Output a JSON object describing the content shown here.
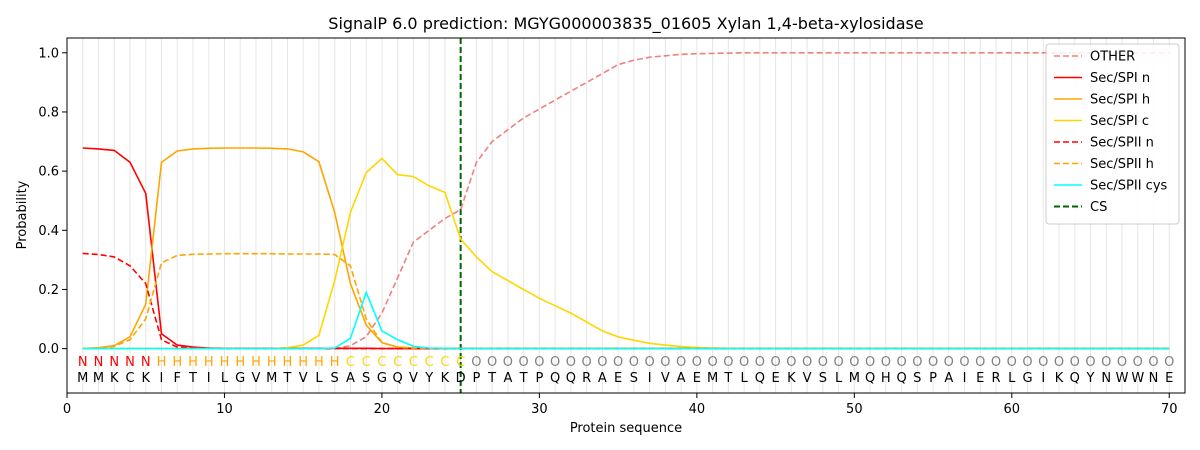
{
  "chart_data": {
    "type": "line",
    "title": "SignalP 6.0 prediction: MGYG000003835_01605 Xylan 1,4-beta-xylosidase",
    "xlabel": "Protein sequence",
    "ylabel": "Probability",
    "xlim": [
      0,
      71
    ],
    "ylim": [
      -0.15,
      1.05
    ],
    "xticks": [
      0,
      10,
      20,
      30,
      40,
      50,
      60,
      70
    ],
    "yticks": [
      0.0,
      0.2,
      0.4,
      0.6,
      0.8,
      1.0
    ],
    "xtick_labels": [
      "0",
      "10",
      "20",
      "30",
      "40",
      "50",
      "60",
      "70"
    ],
    "ytick_labels": [
      "0.0",
      "0.2",
      "0.4",
      "0.6",
      "0.8",
      "1.0"
    ],
    "legend_position": "top-right",
    "cleavage_site": 25,
    "sequence": [
      "M",
      "M",
      "K",
      "C",
      "K",
      "I",
      "F",
      "T",
      "I",
      "L",
      "G",
      "V",
      "M",
      "T",
      "V",
      "L",
      "S",
      "A",
      "S",
      "G",
      "Q",
      "V",
      "Y",
      "K",
      "D",
      "P",
      "T",
      "A",
      "T",
      "P",
      "Q",
      "Q",
      "R",
      "A",
      "E",
      "S",
      "I",
      "V",
      "A",
      "E",
      "M",
      "T",
      "L",
      "Q",
      "E",
      "K",
      "V",
      "S",
      "L",
      "M",
      "Q",
      "H",
      "Q",
      "S",
      "P",
      "A",
      "I",
      "E",
      "R",
      "L",
      "G",
      "I",
      "K",
      "Q",
      "Y",
      "N",
      "W",
      "W",
      "N",
      "E"
    ],
    "region_labels": [
      "N",
      "N",
      "N",
      "N",
      "N",
      "H",
      "H",
      "H",
      "H",
      "H",
      "H",
      "H",
      "H",
      "H",
      "H",
      "H",
      "H",
      "C",
      "C",
      "C",
      "C",
      "C",
      "C",
      "C",
      "C",
      "O",
      "O",
      "O",
      "O",
      "O",
      "O",
      "O",
      "O",
      "O",
      "O",
      "O",
      "O",
      "O",
      "O",
      "O",
      "O",
      "O",
      "O",
      "O",
      "O",
      "O",
      "O",
      "O",
      "O",
      "O",
      "O",
      "O",
      "O",
      "O",
      "O",
      "O",
      "O",
      "O",
      "O",
      "O",
      "O",
      "O",
      "O",
      "O",
      "O",
      "O",
      "O",
      "O",
      "O",
      "O"
    ],
    "region_colors": {
      "N": "#ff0000",
      "H": "#ffa500",
      "C": "#ffd700",
      "O": "#808080"
    },
    "cs_label": "CS",
    "cs_color": "#006400",
    "series": [
      {
        "name": "OTHER",
        "color": "#f08080",
        "dash": "dashed",
        "values": [
          0.0,
          0.0,
          0.0,
          0.0,
          0.0,
          0.0,
          0.0,
          0.0,
          0.0,
          0.0,
          0.0,
          0.0,
          0.0,
          0.0,
          0.0,
          0.0,
          0.0,
          0.01,
          0.04,
          0.12,
          0.24,
          0.36,
          0.4,
          0.44,
          0.47,
          0.63,
          0.7,
          0.74,
          0.78,
          0.81,
          0.84,
          0.87,
          0.9,
          0.93,
          0.96,
          0.975,
          0.985,
          0.99,
          0.995,
          0.997,
          0.998,
          0.999,
          1.0,
          1.0,
          1.0,
          1.0,
          1.0,
          1.0,
          1.0,
          1.0,
          1.0,
          1.0,
          1.0,
          1.0,
          1.0,
          1.0,
          1.0,
          1.0,
          1.0,
          1.0,
          1.0,
          1.0,
          1.0,
          1.0,
          1.0,
          1.0,
          1.0,
          1.0,
          1.0,
          1.0
        ]
      },
      {
        "name": "Sec/SPI n",
        "color": "#ff0000",
        "dash": "solid",
        "values": [
          0.678,
          0.675,
          0.67,
          0.63,
          0.525,
          0.05,
          0.012,
          0.005,
          0.002,
          0.001,
          0.001,
          0.001,
          0.001,
          0.001,
          0.001,
          0.001,
          0.001,
          0.001,
          0.001,
          0.0,
          0.0,
          0.0,
          0.0,
          0.0,
          0.0,
          0.0,
          0.0,
          0.0,
          0.0,
          0.0,
          0.0,
          0.0,
          0.0,
          0.0,
          0.0,
          0.0,
          0.0,
          0.0,
          0.0,
          0.0,
          0.0,
          0.0,
          0.0,
          0.0,
          0.0,
          0.0,
          0.0,
          0.0,
          0.0,
          0.0,
          0.0,
          0.0,
          0.0,
          0.0,
          0.0,
          0.0,
          0.0,
          0.0,
          0.0,
          0.0,
          0.0,
          0.0,
          0.0,
          0.0,
          0.0,
          0.0,
          0.0,
          0.0,
          0.0,
          0.0
        ]
      },
      {
        "name": "Sec/SPI h",
        "color": "#ffa500",
        "dash": "solid",
        "values": [
          0.0,
          0.003,
          0.01,
          0.04,
          0.15,
          0.63,
          0.668,
          0.675,
          0.677,
          0.678,
          0.678,
          0.678,
          0.677,
          0.675,
          0.665,
          0.632,
          0.46,
          0.22,
          0.08,
          0.02,
          0.005,
          0.002,
          0.001,
          0.0,
          0.0,
          0.0,
          0.0,
          0.0,
          0.0,
          0.0,
          0.0,
          0.0,
          0.0,
          0.0,
          0.0,
          0.0,
          0.0,
          0.0,
          0.0,
          0.0,
          0.0,
          0.0,
          0.0,
          0.0,
          0.0,
          0.0,
          0.0,
          0.0,
          0.0,
          0.0,
          0.0,
          0.0,
          0.0,
          0.0,
          0.0,
          0.0,
          0.0,
          0.0,
          0.0,
          0.0,
          0.0,
          0.0,
          0.0,
          0.0,
          0.0,
          0.0,
          0.0,
          0.0,
          0.0,
          0.0
        ]
      },
      {
        "name": "Sec/SPI c",
        "color": "#ffd700",
        "dash": "solid",
        "values": [
          0.0,
          0.0,
          0.0,
          0.0,
          0.0,
          0.0,
          0.0,
          0.0,
          0.0,
          0.0,
          0.0,
          0.0,
          0.0,
          0.003,
          0.012,
          0.045,
          0.23,
          0.46,
          0.595,
          0.643,
          0.588,
          0.582,
          0.55,
          0.528,
          0.37,
          0.31,
          0.26,
          0.23,
          0.2,
          0.17,
          0.145,
          0.12,
          0.09,
          0.06,
          0.04,
          0.028,
          0.018,
          0.012,
          0.007,
          0.004,
          0.002,
          0.001,
          0.0,
          0.0,
          0.0,
          0.0,
          0.0,
          0.0,
          0.0,
          0.0,
          0.0,
          0.0,
          0.0,
          0.0,
          0.0,
          0.0,
          0.0,
          0.0,
          0.0,
          0.0,
          0.0,
          0.0,
          0.0,
          0.0,
          0.0,
          0.0,
          0.0,
          0.0,
          0.0,
          0.0
        ]
      },
      {
        "name": "Sec/SPII n",
        "color": "#ff0000",
        "dash": "dashed",
        "values": [
          0.322,
          0.318,
          0.31,
          0.28,
          0.22,
          0.03,
          0.005,
          0.002,
          0.001,
          0.0,
          0.0,
          0.0,
          0.0,
          0.0,
          0.0,
          0.0,
          0.0,
          0.0,
          0.0,
          0.0,
          0.0,
          0.0,
          0.0,
          0.0,
          0.0,
          0.0,
          0.0,
          0.0,
          0.0,
          0.0,
          0.0,
          0.0,
          0.0,
          0.0,
          0.0,
          0.0,
          0.0,
          0.0,
          0.0,
          0.0,
          0.0,
          0.0,
          0.0,
          0.0,
          0.0,
          0.0,
          0.0,
          0.0,
          0.0,
          0.0,
          0.0,
          0.0,
          0.0,
          0.0,
          0.0,
          0.0,
          0.0,
          0.0,
          0.0,
          0.0,
          0.0,
          0.0,
          0.0,
          0.0,
          0.0,
          0.0,
          0.0,
          0.0,
          0.0,
          0.0
        ]
      },
      {
        "name": "Sec/SPII h",
        "color": "#ffa500",
        "dash": "dashed",
        "values": [
          0.0,
          0.002,
          0.008,
          0.03,
          0.1,
          0.29,
          0.315,
          0.319,
          0.32,
          0.321,
          0.321,
          0.321,
          0.321,
          0.32,
          0.32,
          0.32,
          0.318,
          0.28,
          0.1,
          0.02,
          0.005,
          0.002,
          0.001,
          0.0,
          0.0,
          0.0,
          0.0,
          0.0,
          0.0,
          0.0,
          0.0,
          0.0,
          0.0,
          0.0,
          0.0,
          0.0,
          0.0,
          0.0,
          0.0,
          0.0,
          0.0,
          0.0,
          0.0,
          0.0,
          0.0,
          0.0,
          0.0,
          0.0,
          0.0,
          0.0,
          0.0,
          0.0,
          0.0,
          0.0,
          0.0,
          0.0,
          0.0,
          0.0,
          0.0,
          0.0,
          0.0,
          0.0,
          0.0,
          0.0,
          0.0,
          0.0,
          0.0,
          0.0,
          0.0,
          0.0
        ]
      },
      {
        "name": "Sec/SPII cys",
        "color": "#00ffff",
        "dash": "solid",
        "values": [
          0.0,
          0.0,
          0.0,
          0.0,
          0.0,
          0.0,
          0.0,
          0.0,
          0.0,
          0.0,
          0.0,
          0.0,
          0.0,
          0.0,
          0.0,
          0.0,
          0.002,
          0.035,
          0.19,
          0.06,
          0.03,
          0.008,
          0.002,
          0.001,
          0.0,
          0.0,
          0.0,
          0.0,
          0.0,
          0.0,
          0.0,
          0.0,
          0.0,
          0.0,
          0.0,
          0.0,
          0.0,
          0.0,
          0.0,
          0.0,
          0.0,
          0.0,
          0.0,
          0.0,
          0.0,
          0.0,
          0.0,
          0.0,
          0.0,
          0.0,
          0.0,
          0.0,
          0.0,
          0.0,
          0.0,
          0.0,
          0.0,
          0.0,
          0.0,
          0.0,
          0.0,
          0.0,
          0.0,
          0.0,
          0.0,
          0.0,
          0.0,
          0.0,
          0.0,
          0.0
        ]
      }
    ]
  }
}
